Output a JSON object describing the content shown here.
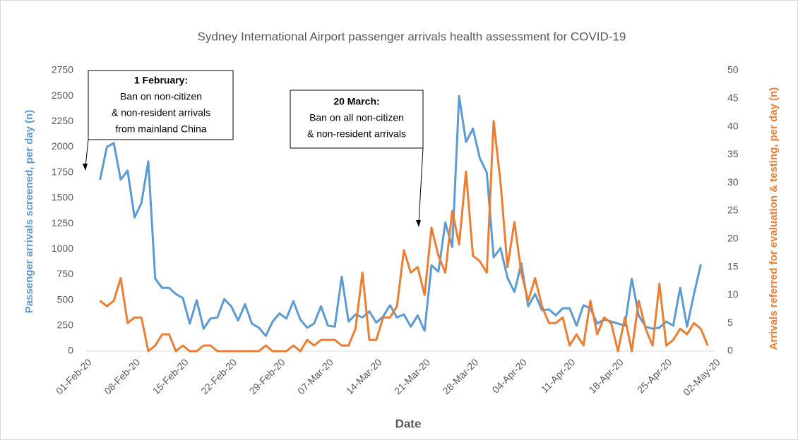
{
  "chart_data": {
    "type": "line",
    "title": "Sydney International Airport passenger arrivals health assessment for COVID-19",
    "xlabel": "Date",
    "ylabel": "Passenger arrivals screened, per day (n)",
    "y2label": "Arrivals referred for evaluation & testing, per day (n)",
    "categories": [
      "01-Feb-20",
      null,
      null,
      null,
      null,
      null,
      null,
      "08-Feb-20",
      null,
      null,
      null,
      null,
      null,
      null,
      "15-Feb-20",
      null,
      null,
      null,
      null,
      null,
      null,
      "22-Feb-20",
      null,
      null,
      null,
      null,
      null,
      null,
      "29-Feb-20",
      null,
      null,
      null,
      null,
      null,
      null,
      "07-Mar-20",
      null,
      null,
      null,
      null,
      null,
      null,
      "14-Mar-20",
      null,
      null,
      null,
      null,
      null,
      null,
      "21-Mar-20",
      null,
      null,
      null,
      null,
      null,
      null,
      "28-Mar-20",
      null,
      null,
      null,
      null,
      null,
      null,
      "04-Apr-20",
      null,
      null,
      null,
      null,
      null,
      null,
      "11-Apr-20",
      null,
      null,
      null,
      null,
      null,
      null,
      "18-Apr-20",
      null,
      null,
      null,
      null,
      null,
      null,
      "25-Apr-20",
      null,
      null,
      null,
      null,
      null,
      null,
      "02-May-20"
    ],
    "series": [
      {
        "name": "Passenger arrivals screened",
        "color": "#5b9bd5",
        "axis": "y",
        "values": [
          null,
          null,
          1680,
          2000,
          2040,
          1680,
          1770,
          1310,
          1450,
          1860,
          710,
          620,
          620,
          560,
          520,
          270,
          500,
          220,
          320,
          330,
          510,
          440,
          300,
          460,
          270,
          230,
          150,
          290,
          370,
          320,
          490,
          310,
          230,
          270,
          440,
          250,
          240,
          730,
          290,
          360,
          330,
          390,
          280,
          340,
          450,
          330,
          360,
          240,
          350,
          200,
          840,
          780,
          1260,
          1020,
          2500,
          2050,
          2180,
          1890,
          1750,
          920,
          1010,
          720,
          580,
          860,
          440,
          560,
          400,
          410,
          350,
          420,
          420,
          250,
          450,
          420,
          270,
          310,
          290,
          270,
          250,
          710,
          350,
          240,
          220,
          230,
          290,
          250,
          620,
          240,
          560,
          850,
          null,
          null
        ]
      },
      {
        "name": "Arrivals referred for evaluation & testing",
        "color": "#ed7d31",
        "axis": "y2",
        "values": [
          null,
          null,
          9,
          8,
          9,
          13,
          5,
          6,
          6,
          0,
          1,
          3,
          3,
          0,
          1,
          0,
          0,
          1,
          1,
          0,
          0,
          0,
          0,
          0,
          0,
          0,
          1,
          0,
          0,
          0,
          1,
          0,
          2,
          1,
          2,
          2,
          2,
          1,
          1,
          4,
          14,
          2,
          2,
          6,
          6,
          8,
          18,
          14,
          15,
          10,
          22,
          17,
          14,
          25,
          19,
          32,
          17,
          16,
          14,
          41,
          30,
          15,
          23,
          14,
          9,
          13,
          8,
          5,
          5,
          6,
          1,
          3,
          1,
          9,
          3,
          6,
          5,
          0,
          6,
          0,
          9,
          4,
          1,
          12,
          1,
          2,
          4,
          3,
          5,
          4,
          1,
          null
        ]
      }
    ],
    "ylim": [
      0,
      2750
    ],
    "yticks": [
      0,
      250,
      500,
      750,
      1000,
      1250,
      1500,
      1750,
      2000,
      2250,
      2500,
      2750
    ],
    "y2lim": [
      0,
      50
    ],
    "y2ticks": [
      0,
      5,
      10,
      15,
      20,
      25,
      30,
      35,
      40,
      45,
      50
    ],
    "grid": false,
    "annotations": [
      {
        "lines": [
          "1 February:",
          "Ban on non-citizen",
          "& non-resident arrivals",
          "from mainland China"
        ]
      },
      {
        "lines": [
          "20 March:",
          "Ban on all non-citizen",
          "& non-resident arrivals"
        ]
      }
    ]
  }
}
